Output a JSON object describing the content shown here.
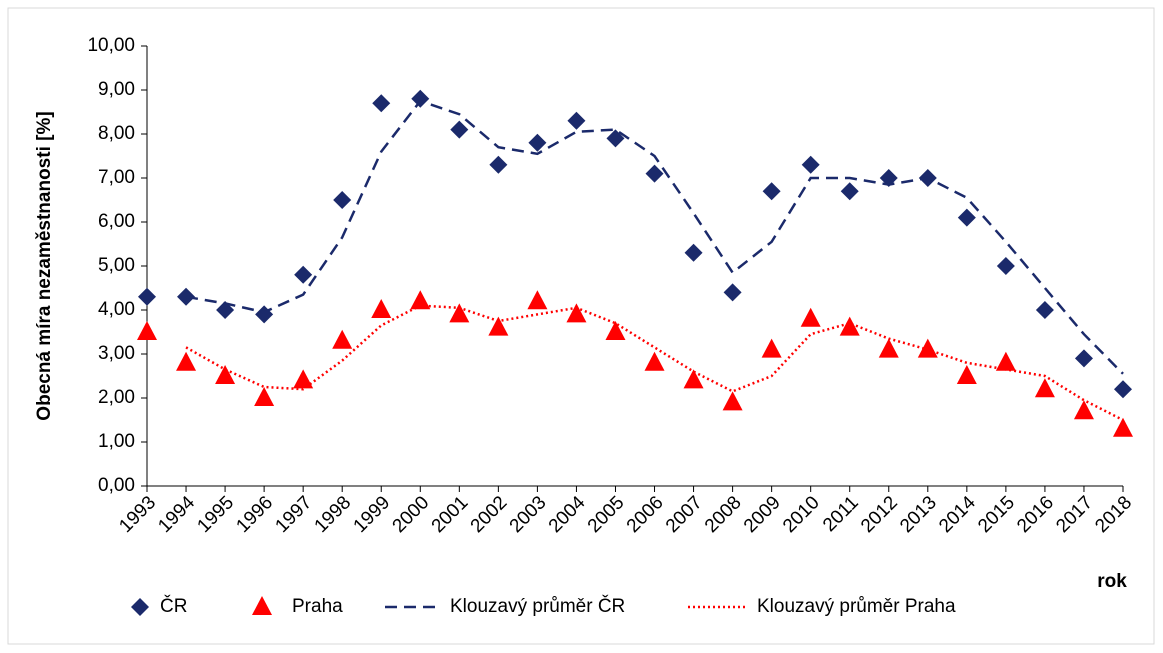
{
  "chart_data": {
    "type": "line",
    "y_label": "Obecná míra nezaměstnanosti [%]",
    "x_label": "rok",
    "categories": [
      "1993",
      "1994",
      "1995",
      "1996",
      "1997",
      "1998",
      "1999",
      "2000",
      "2001",
      "2002",
      "2003",
      "2004",
      "2005",
      "2006",
      "2007",
      "2008",
      "2009",
      "2010",
      "2011",
      "2012",
      "2013",
      "2014",
      "2015",
      "2016",
      "2017",
      "2018"
    ],
    "ylim": [
      0,
      10
    ],
    "yticks": [
      {
        "value": 0,
        "label": "0,00"
      },
      {
        "value": 1,
        "label": "1,00"
      },
      {
        "value": 2,
        "label": "2,00"
      },
      {
        "value": 3,
        "label": "3,00"
      },
      {
        "value": 4,
        "label": "4,00"
      },
      {
        "value": 5,
        "label": "5,00"
      },
      {
        "value": 6,
        "label": "6,00"
      },
      {
        "value": 7,
        "label": "7,00"
      },
      {
        "value": 8,
        "label": "8,00"
      },
      {
        "value": 9,
        "label": "9,00"
      },
      {
        "value": 10,
        "label": "10,00"
      }
    ],
    "legend": "bottom",
    "series": [
      {
        "name": "ČR",
        "color": "#1b2a6b",
        "marker": "diamond",
        "line": "none",
        "values": [
          4.3,
          4.3,
          4.0,
          3.9,
          4.8,
          6.5,
          8.7,
          8.8,
          8.1,
          7.3,
          7.8,
          8.3,
          7.9,
          7.1,
          5.3,
          4.4,
          6.7,
          7.3,
          6.7,
          7.0,
          7.0,
          6.1,
          5.0,
          4.0,
          2.9,
          2.2
        ]
      },
      {
        "name": "Praha",
        "color": "#ff0000",
        "marker": "triangle",
        "line": "none",
        "values": [
          3.5,
          2.8,
          2.5,
          2.0,
          2.4,
          3.3,
          4.0,
          4.2,
          3.9,
          3.6,
          4.2,
          3.9,
          3.5,
          2.8,
          2.4,
          1.9,
          3.1,
          3.8,
          3.6,
          3.1,
          3.1,
          2.5,
          2.8,
          2.2,
          1.7,
          1.3
        ]
      },
      {
        "name": "Klouzavý průměr ČR",
        "color": "#1b2a6b",
        "marker": "none",
        "line": "dashed",
        "values": [
          null,
          4.3,
          4.15,
          3.95,
          4.35,
          5.65,
          7.6,
          8.75,
          8.45,
          7.7,
          7.55,
          8.05,
          8.1,
          7.5,
          6.2,
          4.85,
          5.55,
          7.0,
          7.0,
          6.85,
          7.0,
          6.55,
          5.55,
          4.5,
          3.45,
          2.55
        ]
      },
      {
        "name": "Klouzavý průměr Praha",
        "color": "#ff0000",
        "marker": "none",
        "line": "dotted",
        "values": [
          null,
          3.15,
          2.65,
          2.25,
          2.2,
          2.85,
          3.65,
          4.1,
          4.05,
          3.75,
          3.9,
          4.05,
          3.7,
          3.15,
          2.6,
          2.15,
          2.5,
          3.45,
          3.7,
          3.35,
          3.1,
          2.8,
          2.65,
          2.5,
          1.95,
          1.5
        ]
      }
    ]
  }
}
